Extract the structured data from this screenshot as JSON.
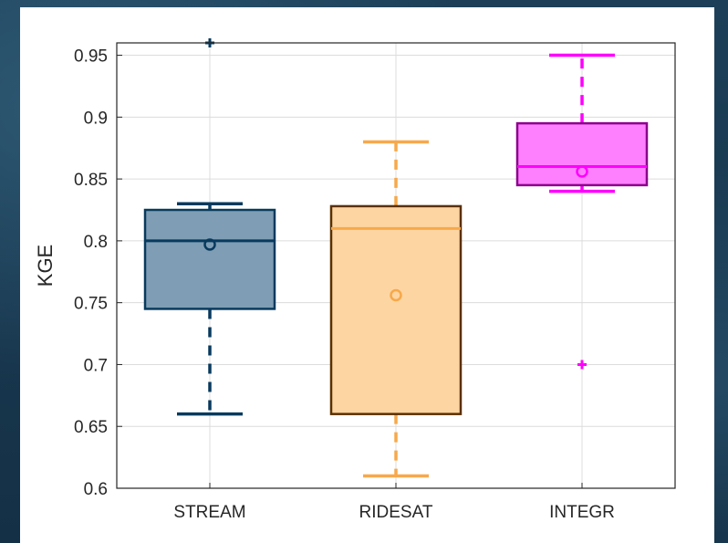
{
  "chart_data": {
    "type": "box",
    "title": "",
    "xlabel": "",
    "ylabel": "KGE",
    "ylim": [
      0.6,
      0.96
    ],
    "yticks": [
      0.6,
      0.65,
      0.7,
      0.75,
      0.8,
      0.85,
      0.9,
      0.95
    ],
    "ytick_labels": [
      "0.6",
      "0.65",
      "0.7",
      "0.75",
      "0.8",
      "0.85",
      "0.9",
      "0.95"
    ],
    "grid": true,
    "categories": [
      "STREAM",
      "RIDESAT",
      "INTEGR"
    ],
    "series": [
      {
        "category": "STREAM",
        "q1": 0.745,
        "median": 0.8,
        "q3": 0.825,
        "mean": 0.797,
        "whisker_low": 0.66,
        "whisker_high": 0.83,
        "outliers": [
          0.96
        ],
        "fill": "#7f9db4",
        "stroke": "#083a5e"
      },
      {
        "category": "RIDESAT",
        "q1": 0.66,
        "median": 0.81,
        "q3": 0.828,
        "mean": 0.756,
        "whisker_low": 0.61,
        "whisker_high": 0.88,
        "outliers": [],
        "fill": "#fdd5a2",
        "stroke": "#5a3000",
        "accent": "#f7a84a"
      },
      {
        "category": "INTEGR",
        "q1": 0.845,
        "median": 0.86,
        "q3": 0.895,
        "mean": 0.856,
        "whisker_low": 0.84,
        "whisker_high": 0.95,
        "outliers": [
          0.7
        ],
        "fill": "#ff80ff",
        "stroke": "#8a008a",
        "accent": "#ff00ff"
      }
    ]
  }
}
